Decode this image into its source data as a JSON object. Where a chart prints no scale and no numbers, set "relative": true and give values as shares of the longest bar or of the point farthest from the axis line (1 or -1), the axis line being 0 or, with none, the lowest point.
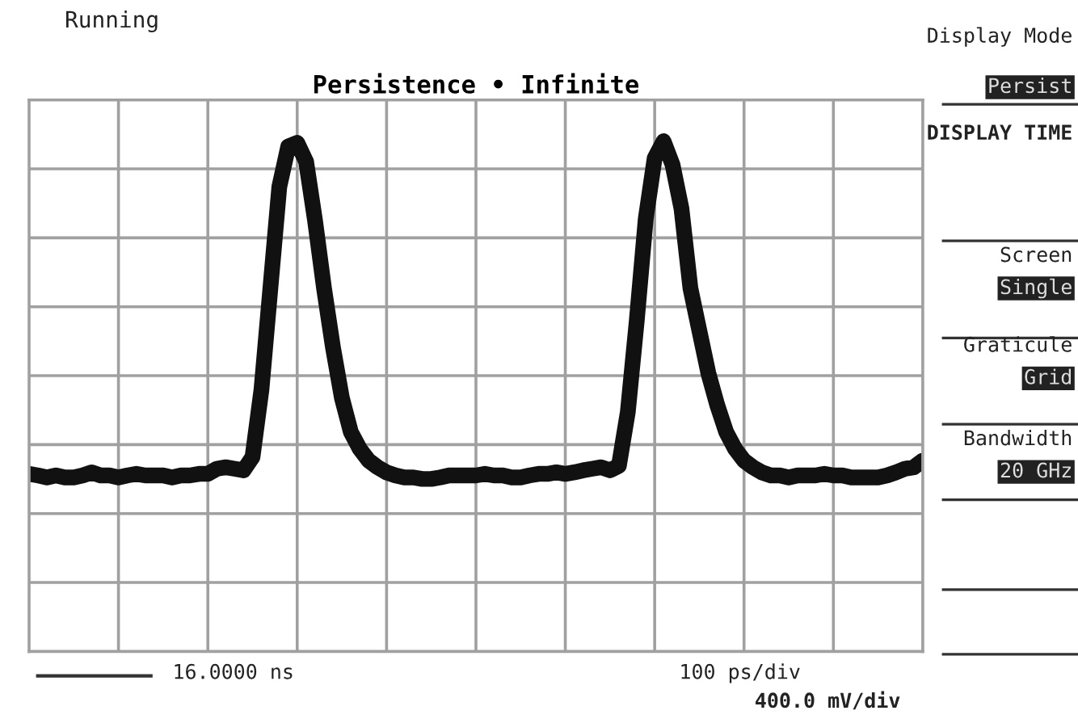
{
  "chart_data": {
    "type": "line",
    "title": "Persistence • Infinite",
    "relative": true,
    "categories": [
      null,
      null,
      null,
      null,
      null,
      null,
      null,
      null,
      null,
      null,
      null,
      null,
      null,
      null,
      null,
      null,
      null,
      null,
      null,
      null,
      null,
      null,
      null,
      null,
      null,
      null,
      null,
      null,
      null,
      null,
      null,
      null,
      null,
      null,
      null,
      null,
      null,
      null,
      null,
      null,
      null,
      null,
      null,
      null,
      null,
      null,
      null,
      null,
      null,
      null,
      null,
      null,
      null,
      null,
      null,
      null,
      null,
      null,
      null,
      null,
      null,
      null,
      null,
      null,
      null,
      null,
      null,
      null,
      null,
      null,
      null,
      null,
      null,
      null,
      null,
      null,
      null,
      null,
      null,
      null,
      null,
      null,
      null,
      null,
      null,
      null,
      null,
      null,
      null,
      null,
      null,
      null,
      null,
      null,
      null,
      null,
      null,
      null,
      null,
      null,
      null
    ],
    "grid": true,
    "marker": "none",
    "line_style": "solid",
    "series": [
      {
        "color": "#111111",
        "values": [
          0.348,
          0.345,
          0.341,
          0.345,
          0.341,
          0.341,
          0.345,
          0.351,
          0.345,
          0.345,
          0.341,
          0.345,
          0.348,
          0.345,
          0.345,
          0.345,
          0.341,
          0.345,
          0.345,
          0.348,
          0.348,
          0.358,
          0.361,
          0.358,
          0.355,
          0.381,
          0.513,
          0.712,
          0.911,
          0.99,
          0.997,
          0.96,
          0.844,
          0.712,
          0.596,
          0.497,
          0.43,
          0.397,
          0.374,
          0.361,
          0.351,
          0.345,
          0.341,
          0.341,
          0.338,
          0.338,
          0.341,
          0.345,
          0.345,
          0.345,
          0.345,
          0.348,
          0.345,
          0.345,
          0.341,
          0.341,
          0.345,
          0.348,
          0.348,
          0.351,
          0.348,
          0.351,
          0.355,
          0.358,
          0.361,
          0.355,
          0.364,
          0.47,
          0.649,
          0.848,
          0.967,
          1.0,
          0.954,
          0.868,
          0.712,
          0.629,
          0.546,
          0.483,
          0.43,
          0.397,
          0.374,
          0.361,
          0.351,
          0.345,
          0.345,
          0.341,
          0.345,
          0.345,
          0.345,
          0.348,
          0.345,
          0.345,
          0.341,
          0.341,
          0.341,
          0.341,
          0.345,
          0.351,
          0.358,
          0.361,
          0.374
        ]
      }
    ],
    "annotations": [
      "Running",
      "Display Mode",
      "Persist",
      "DISPLAY TIME",
      "Screen",
      "Single",
      "Graticule",
      "Grid",
      "Bandwidth",
      "20 GHz",
      "16.0000 ns",
      "100 ps/div",
      "400.0 mV/div"
    ]
  }
}
